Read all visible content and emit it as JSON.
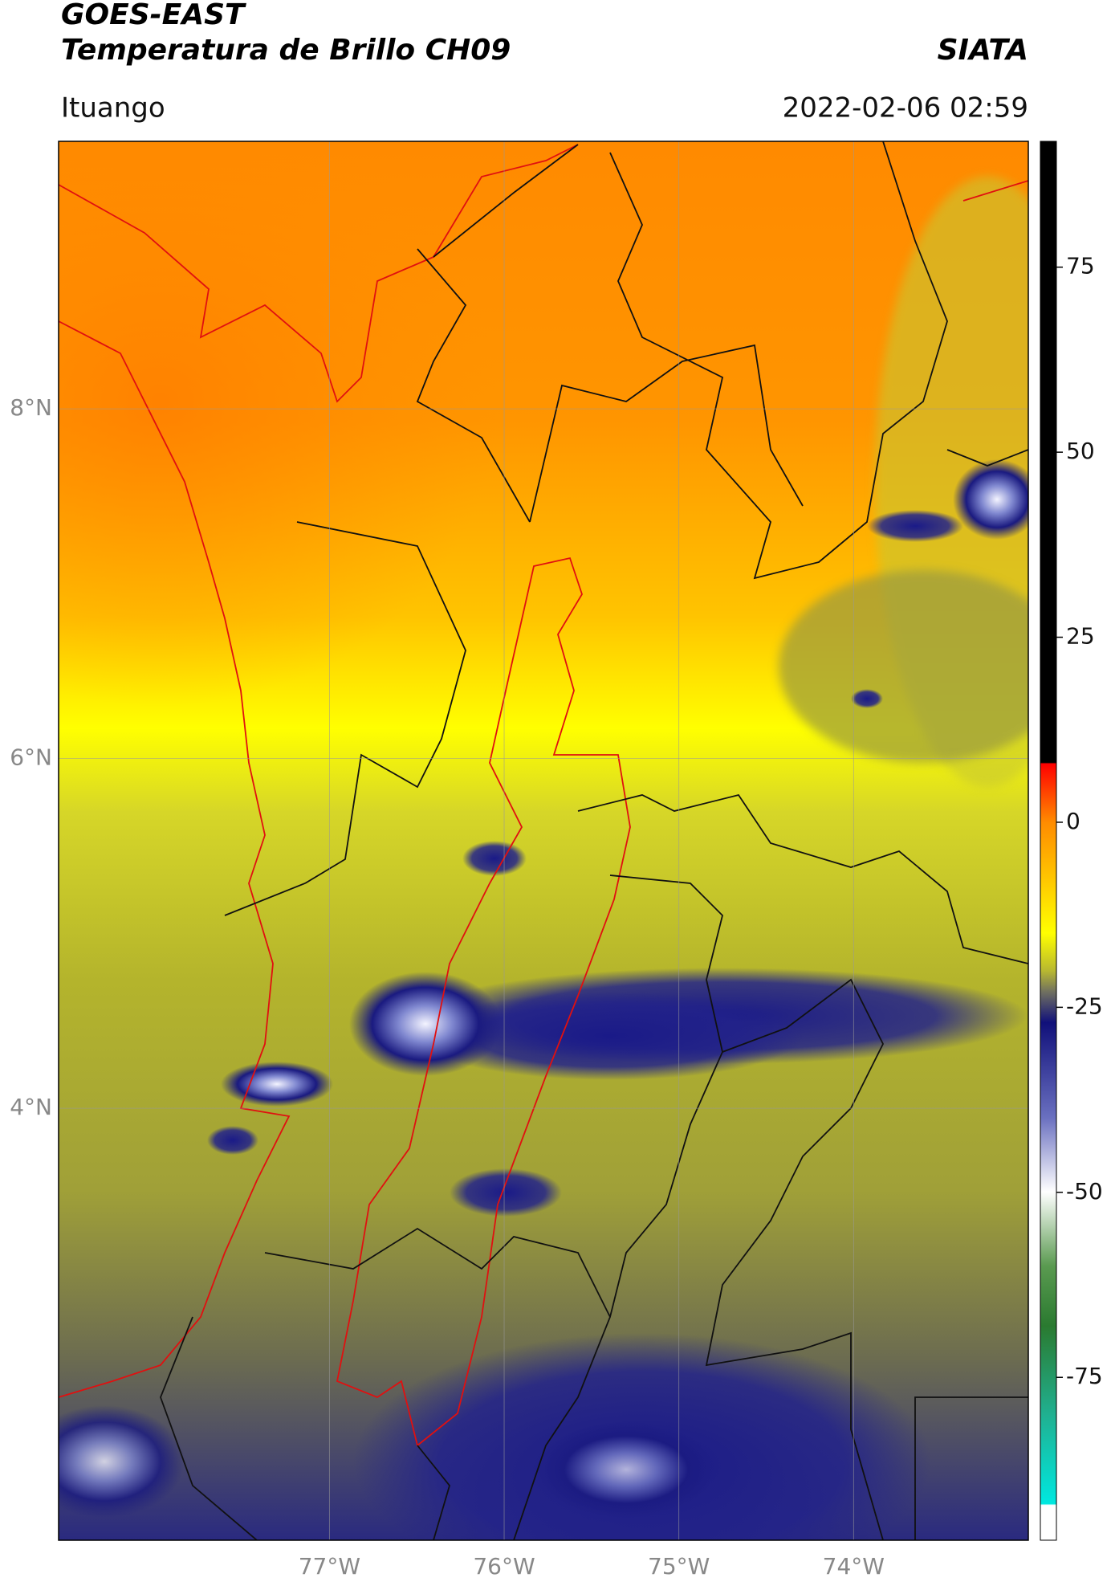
{
  "header": {
    "title": "GOES-EAST",
    "subtitle": "Temperatura de Brillo CH09",
    "organization": "SIATA",
    "location": "Ituango",
    "datetime": "2022-02-06 02:59"
  },
  "map": {
    "xlim": [
      -78.55,
      -73.0
    ],
    "ylim": [
      1.53,
      9.53
    ],
    "xticks": [
      {
        "value": -77,
        "label": "77°W"
      },
      {
        "value": -76,
        "label": "76°W"
      },
      {
        "value": -75,
        "label": "75°W"
      },
      {
        "value": -74,
        "label": "74°W"
      }
    ],
    "yticks": [
      {
        "value": 8,
        "label": "8°N"
      },
      {
        "value": 6,
        "label": "6°N"
      },
      {
        "value": 4,
        "label": "4°N"
      }
    ],
    "grid": true
  },
  "colorbar": {
    "lim": [
      -97,
      92
    ],
    "ticks": [
      75,
      50,
      25,
      0,
      -25,
      -50,
      -75
    ]
  }
}
